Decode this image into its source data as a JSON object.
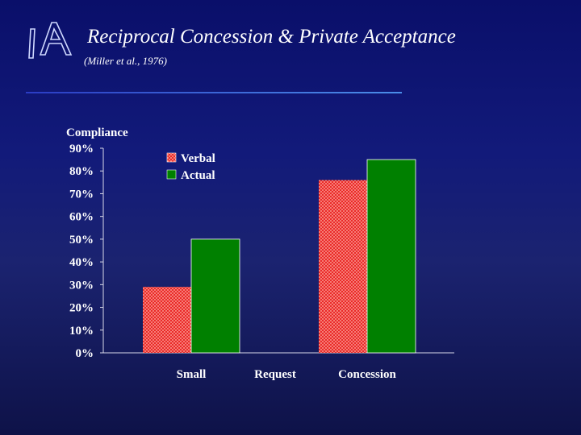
{
  "slide": {
    "title": "Reciprocal Concession & Private Acceptance",
    "subtitle": "(Miller et al., 1976)",
    "logo_text": "IA",
    "rule_color": "#3f6fe0"
  },
  "chart_data": {
    "type": "bar",
    "ylabel": "Compliance",
    "xlabel": "",
    "ylim": [
      0,
      90
    ],
    "yticks": [
      "0%",
      "10%",
      "20%",
      "30%",
      "40%",
      "50%",
      "60%",
      "70%",
      "80%",
      "90%"
    ],
    "categories": [
      "Small",
      "Concession"
    ],
    "category_note": "Request",
    "series": [
      {
        "name": "Verbal",
        "values": [
          29,
          76
        ],
        "color": "#e8201e",
        "pattern": "crosshatch"
      },
      {
        "name": "Actual",
        "values": [
          50,
          85
        ],
        "color": "#008000",
        "pattern": "solid"
      }
    ],
    "legend_position": "top-left",
    "grid": false
  }
}
